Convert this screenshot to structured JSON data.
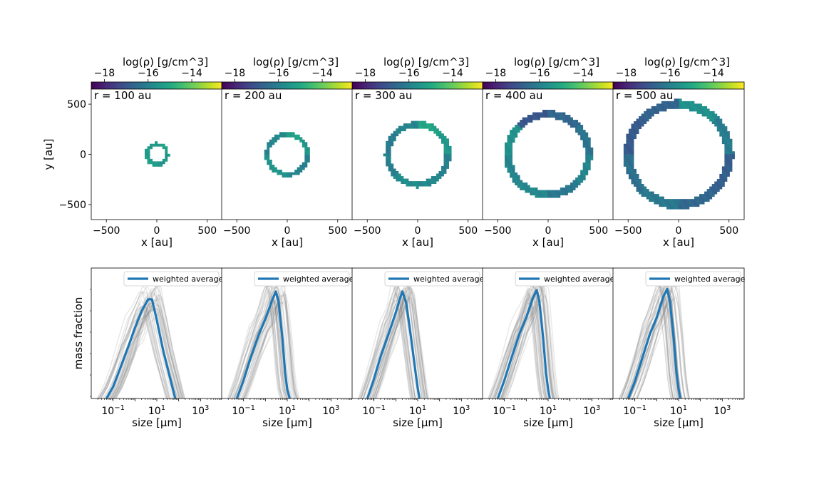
{
  "figure": {
    "colorbar_label": "log(ρ) [g/cm^3]",
    "colorbar_ticks": [
      "−18",
      "−16",
      "−14"
    ],
    "colormap": [
      "#440154",
      "#482475",
      "#414487",
      "#355f8d",
      "#2a788e",
      "#21918c",
      "#22a884",
      "#44bf70",
      "#7ad151",
      "#bddf26",
      "#fde725"
    ]
  },
  "chart_data": [
    {
      "type": "heatmap",
      "description_panel": "density map",
      "annotation": "r = 100 au",
      "xlabel": "x [au]",
      "ylabel": "y [au]",
      "xlim": [
        -650,
        650
      ],
      "ylim": [
        -650,
        650
      ],
      "x_ticks": [
        "−500",
        "0",
        "500"
      ],
      "y_ticks": [
        "500",
        "0",
        "−500"
      ],
      "ring_radius_au": 100,
      "color_range": [
        -18.6,
        -12.6
      ],
      "ring_logrho": [
        -15.3,
        -15.2,
        -15.4,
        -15.3,
        -15.3,
        -15.2,
        -15.5,
        -15.4
      ]
    },
    {
      "type": "heatmap",
      "annotation": "r = 200 au",
      "xlabel": "x [au]",
      "ylabel": "",
      "xlim": [
        -650,
        650
      ],
      "ylim": [
        -650,
        650
      ],
      "x_ticks": [
        "−500",
        "0",
        "500"
      ],
      "ring_radius_au": 200,
      "color_range": [
        -18.6,
        -12.6
      ],
      "ring_logrho": [
        -15.5,
        -15.2,
        -15.8,
        -15.9,
        -15.6,
        -15.5,
        -15.9,
        -16.0
      ]
    },
    {
      "type": "heatmap",
      "annotation": "r = 300 au",
      "xlabel": "x [au]",
      "ylabel": "",
      "xlim": [
        -650,
        650
      ],
      "ylim": [
        -650,
        650
      ],
      "x_ticks": [
        "−500",
        "0",
        "500"
      ],
      "ring_radius_au": 300,
      "color_range": [
        -18.6,
        -12.6
      ],
      "ring_logrho": [
        -15.4,
        -15.1,
        -15.9,
        -16.1,
        -16.0,
        -15.7,
        -15.8,
        -16.0
      ]
    },
    {
      "type": "heatmap",
      "annotation": "r = 400 au",
      "xlabel": "x [au]",
      "ylabel": "",
      "xlim": [
        -650,
        650
      ],
      "ylim": [
        -650,
        650
      ],
      "x_ticks": [
        "−500",
        "0",
        "500"
      ],
      "ring_radius_au": 400,
      "color_range": [
        -18.6,
        -12.6
      ],
      "ring_logrho": [
        -16.3,
        -16.6,
        -17.0,
        -15.6,
        -15.9,
        -15.8,
        -16.2,
        -15.9
      ]
    },
    {
      "type": "heatmap",
      "annotation": "r = 500 au",
      "xlabel": "x [au]",
      "ylabel": "",
      "xlim": [
        -650,
        650
      ],
      "ylim": [
        -650,
        650
      ],
      "x_ticks": [
        "−500",
        "0",
        "500"
      ],
      "ring_radius_au": 500,
      "color_range": [
        -18.6,
        -12.6
      ],
      "ring_logrho": [
        -16.1,
        -15.6,
        -16.7,
        -16.9,
        -16.4,
        -16.2,
        -16.6,
        -16.8
      ]
    },
    {
      "type": "line",
      "xscale": "log",
      "xlim": [
        0.01,
        10000
      ],
      "ylim": [
        0,
        1
      ],
      "xlabel": "size [μm]",
      "ylabel": "mass fraction",
      "x_ticks": [
        {
          "v": 0.1,
          "base": "10",
          "exp": "−1"
        },
        {
          "v": 10,
          "base": "10",
          "exp": "1"
        },
        {
          "v": 1000,
          "base": "10",
          "exp": "3"
        }
      ],
      "legend": "weighted average",
      "legend_placement": "upper right",
      "series": [
        {
          "name": "weighted average",
          "x": [
            0.05,
            0.1,
            0.2,
            0.5,
            1,
            2,
            4,
            6,
            10,
            20,
            40,
            70
          ],
          "y": [
            0.0,
            0.09,
            0.22,
            0.4,
            0.54,
            0.67,
            0.76,
            0.76,
            0.6,
            0.36,
            0.16,
            0.0
          ]
        }
      ]
    },
    {
      "type": "line",
      "xscale": "log",
      "xlim": [
        0.01,
        10000
      ],
      "ylim": [
        0,
        1
      ],
      "xlabel": "size [μm]",
      "ylabel": "",
      "x_ticks": [
        {
          "v": 0.1,
          "base": "10",
          "exp": "−1"
        },
        {
          "v": 10,
          "base": "10",
          "exp": "1"
        },
        {
          "v": 1000,
          "base": "10",
          "exp": "3"
        }
      ],
      "legend": "weighted average",
      "legend_placement": "upper right",
      "series": [
        {
          "name": "weighted average",
          "x": [
            0.05,
            0.1,
            0.2,
            0.5,
            1,
            2,
            3,
            4,
            6,
            8,
            10,
            13
          ],
          "y": [
            0.0,
            0.14,
            0.3,
            0.49,
            0.61,
            0.75,
            0.82,
            0.74,
            0.46,
            0.2,
            0.07,
            0.0
          ]
        }
      ]
    },
    {
      "type": "line",
      "xscale": "log",
      "xlim": [
        0.01,
        10000
      ],
      "ylim": [
        0,
        1
      ],
      "xlabel": "size [μm]",
      "ylabel": "",
      "x_ticks": [
        {
          "v": 0.1,
          "base": "10",
          "exp": "−1"
        },
        {
          "v": 10,
          "base": "10",
          "exp": "1"
        },
        {
          "v": 1000,
          "base": "10",
          "exp": "3"
        }
      ],
      "legend": "weighted average",
      "legend_placement": "upper right",
      "series": [
        {
          "name": "weighted average",
          "x": [
            0.05,
            0.1,
            0.2,
            0.5,
            1,
            1.5,
            2,
            3,
            5,
            8,
            10,
            12
          ],
          "y": [
            0.0,
            0.15,
            0.32,
            0.51,
            0.66,
            0.76,
            0.82,
            0.73,
            0.46,
            0.2,
            0.08,
            0.0
          ]
        }
      ]
    },
    {
      "type": "line",
      "xscale": "log",
      "xlim": [
        0.01,
        10000
      ],
      "ylim": [
        0,
        1
      ],
      "xlabel": "size [μm]",
      "ylabel": "",
      "x_ticks": [
        {
          "v": 0.1,
          "base": "10",
          "exp": "−1"
        },
        {
          "v": 10,
          "base": "10",
          "exp": "1"
        },
        {
          "v": 1000,
          "base": "10",
          "exp": "3"
        }
      ],
      "legend": "weighted average",
      "legend_placement": "upper right",
      "series": [
        {
          "name": "weighted average",
          "x": [
            0.05,
            0.1,
            0.2,
            0.5,
            1,
            2,
            3,
            4,
            6,
            8,
            10,
            12
          ],
          "y": [
            0.0,
            0.14,
            0.3,
            0.5,
            0.62,
            0.77,
            0.83,
            0.74,
            0.45,
            0.2,
            0.07,
            0.0
          ]
        }
      ]
    },
    {
      "type": "line",
      "xscale": "log",
      "xlim": [
        0.01,
        10000
      ],
      "ylim": [
        0,
        1
      ],
      "xlabel": "size [μm]",
      "ylabel": "",
      "x_ticks": [
        {
          "v": 0.1,
          "base": "10",
          "exp": "−1"
        },
        {
          "v": 10,
          "base": "10",
          "exp": "1"
        },
        {
          "v": 1000,
          "base": "10",
          "exp": "3"
        }
      ],
      "legend": "weighted average",
      "legend_placement": "upper right",
      "series": [
        {
          "name": "weighted average",
          "x": [
            0.05,
            0.1,
            0.2,
            0.5,
            1,
            2,
            3,
            4,
            6,
            8,
            10,
            12
          ],
          "y": [
            0.0,
            0.13,
            0.29,
            0.5,
            0.62,
            0.78,
            0.84,
            0.75,
            0.46,
            0.2,
            0.07,
            0.0
          ]
        }
      ]
    }
  ]
}
